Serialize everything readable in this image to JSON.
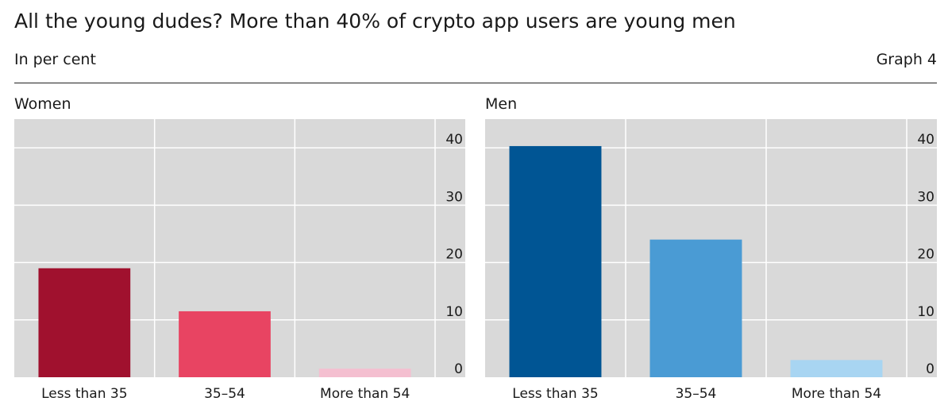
{
  "header": {
    "title": "All the young dudes? More than 40% of crypto app users are young men",
    "subtitle": "In per cent",
    "graph_label": "Graph 4"
  },
  "chart_data": [
    {
      "type": "bar",
      "title": "Women",
      "categories": [
        "Less than 35",
        "35–54",
        "More than 54"
      ],
      "values": [
        19,
        11.5,
        1.5
      ],
      "colors": [
        "#a0112e",
        "#e84462",
        "#f4bfd0"
      ],
      "ylim": [
        0,
        45
      ],
      "yticks": [
        0,
        10,
        20,
        30,
        40
      ],
      "grid": true,
      "background": "#d9d9d9"
    },
    {
      "type": "bar",
      "title": "Men",
      "categories": [
        "Less than 35",
        "35–54",
        "More than 54"
      ],
      "values": [
        40.3,
        24,
        3
      ],
      "colors": [
        "#005594",
        "#4a9bd4",
        "#a8d5f2"
      ],
      "ylim": [
        0,
        45
      ],
      "yticks": [
        0,
        10,
        20,
        30,
        40
      ],
      "grid": true,
      "background": "#d9d9d9"
    }
  ]
}
